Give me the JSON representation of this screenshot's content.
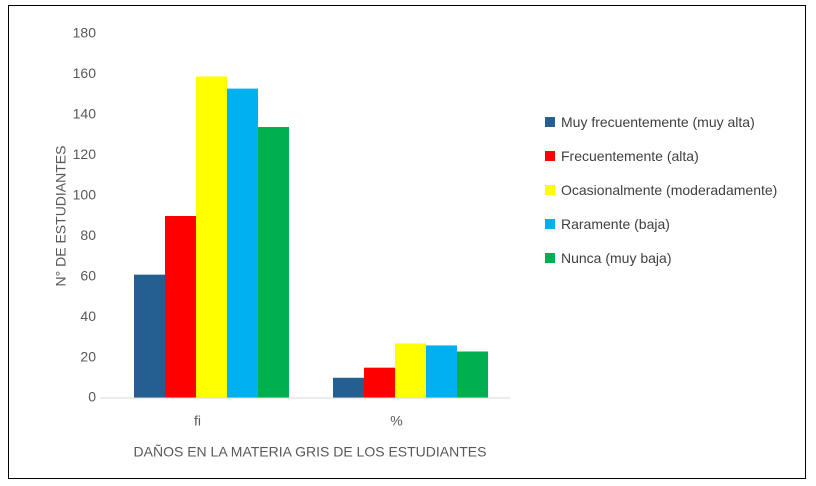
{
  "chart_data": {
    "type": "bar",
    "y_label": "N°  DE ESTUDIANTES",
    "x_label": "DAÑOS EN LA MATERIA GRIS DE LOS ESTUDIANTES",
    "categories": [
      "fi",
      "%"
    ],
    "series": [
      {
        "name": "Muy frecuentemente  (muy alta)",
        "color": "#255e91",
        "values": [
          61,
          10
        ]
      },
      {
        "name": "Frecuentemente (alta)",
        "color": "#ff0000",
        "values": [
          90,
          15
        ]
      },
      {
        "name": "Ocasionalmente (moderadamente)",
        "color": "#ffff00",
        "values": [
          159,
          27
        ]
      },
      {
        "name": "Raramente (baja)",
        "color": "#00b0f0",
        "values": [
          153,
          26
        ]
      },
      {
        "name": "Nunca (muy baja)",
        "color": "#00b050",
        "values": [
          134,
          23
        ]
      }
    ],
    "ylim": [
      0,
      180
    ],
    "yticks": [
      0,
      20,
      40,
      60,
      80,
      100,
      120,
      140,
      160,
      180
    ],
    "grid": false
  }
}
